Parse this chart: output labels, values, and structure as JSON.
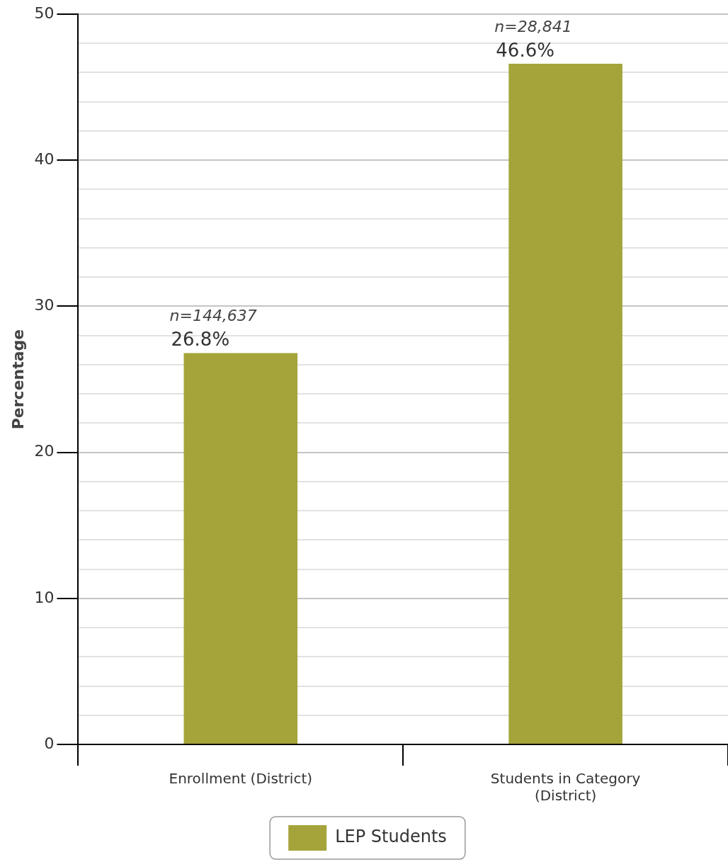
{
  "chart_data": {
    "type": "bar",
    "ylabel": "Percentage",
    "categories": [
      "Enrollment (District)",
      "Students in Category (District)"
    ],
    "series": [
      {
        "name": "LEP Students",
        "color": "#a5a43a",
        "values": [
          26.8,
          46.6
        ],
        "value_labels": [
          "26.8%",
          "46.6%"
        ]
      }
    ],
    "annotations": [
      {
        "text": "n=144,637",
        "x": "Enrollment (District)",
        "y": 26.8
      },
      {
        "text": "n=28,841",
        "x": "Students in Category (District)",
        "y": 46.6
      }
    ],
    "ylim": [
      0,
      50
    ],
    "yticks": [
      0,
      {
        "value": 2,
        "label": null
      },
      {
        "value": 4,
        "label": null
      },
      {
        "value": 6,
        "label": null
      },
      {
        "value": 8,
        "label": null
      },
      10,
      {
        "value": 12,
        "label": null
      },
      {
        "value": 14,
        "label": null
      },
      {
        "value": 16,
        "label": null
      },
      {
        "value": 18,
        "label": null
      },
      20,
      {
        "value": 22,
        "label": null
      },
      {
        "value": 24,
        "label": null
      },
      {
        "value": 26,
        "label": null
      },
      {
        "value": 28,
        "label": null
      },
      30,
      {
        "value": 32,
        "label": null
      },
      {
        "value": 34,
        "label": null
      },
      {
        "value": 36,
        "label": null
      },
      {
        "value": 38,
        "label": null
      },
      40,
      {
        "value": 42,
        "label": null
      },
      {
        "value": 44,
        "label": null
      },
      {
        "value": 46,
        "label": null
      },
      {
        "value": 48,
        "label": null
      },
      50
    ],
    "grid": true,
    "legend": "bottom"
  }
}
